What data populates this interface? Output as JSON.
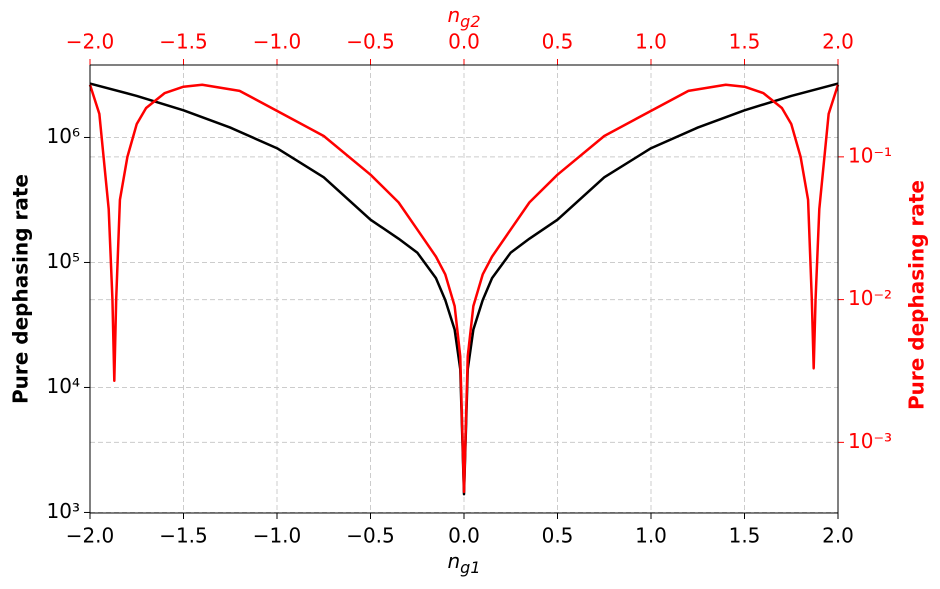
{
  "chart_data": {
    "type": "line",
    "x_label": {
      "main": "n",
      "sub": "g1"
    },
    "x2_label": {
      "main": "n",
      "sub": "g2"
    },
    "y_label": "Pure dephasing rate",
    "y2_label": "Pure dephasing rate",
    "xlim": [
      -2,
      2
    ],
    "xticks": [
      {
        "value": -2,
        "label": "−2.0"
      },
      {
        "value": -1.5,
        "label": "−1.5"
      },
      {
        "value": -1,
        "label": "−1.0"
      },
      {
        "value": -0.5,
        "label": "−0.5"
      },
      {
        "value": 0,
        "label": "0.0"
      },
      0.5,
      {
        "value": 1,
        "label": "1.0"
      },
      1.5,
      {
        "value": 2,
        "label": "2.0"
      }
    ],
    "x2lim": [
      -2,
      2
    ],
    "x2ticks": [
      {
        "value": -2,
        "label": "−2.0"
      },
      {
        "value": -1.5,
        "label": "−1.5"
      },
      {
        "value": -1,
        "label": "−1.0"
      },
      {
        "value": -0.5,
        "label": "−0.5"
      },
      {
        "value": 0,
        "label": "0.0"
      },
      0.5,
      {
        "value": 1,
        "label": "1.0"
      },
      1.5,
      {
        "value": 2,
        "label": "2.0"
      }
    ],
    "ylim": [
      990,
      3800000
    ],
    "yticks": [
      {
        "value": 1000,
        "label": "10³"
      },
      {
        "value": 10000,
        "label": "10⁴"
      },
      {
        "value": 100000,
        "label": "10⁵"
      },
      {
        "value": 1000000,
        "label": "10⁶"
      }
    ],
    "y2lim": [
      0.00032,
      0.44
    ],
    "y2ticks": [
      {
        "value": 0.001,
        "label": "10⁻³"
      },
      {
        "value": 0.01,
        "label": "10⁻²"
      },
      {
        "value": 0.1,
        "label": "10⁻¹"
      }
    ],
    "log_y": true,
    "log_y2": true,
    "grid": true,
    "y2_color": "#ff0000",
    "x2_color": "#ff0000",
    "series": [
      {
        "color": "#000000",
        "axis": "y",
        "x": [
          -2,
          -1.75,
          -1.5,
          -1.25,
          -1,
          -0.75,
          -0.5,
          -0.35,
          -0.25,
          -0.15,
          -0.1,
          -0.05,
          -0.02,
          0,
          0.02,
          0.05,
          0.1,
          0.15,
          0.25,
          0.35,
          0.5,
          0.75,
          1,
          1.25,
          1.5,
          1.75,
          2
        ],
        "values": [
          2700000,
          2150000,
          1650000,
          1200000,
          820000,
          480000,
          220000,
          155000,
          120000,
          75000,
          50000,
          29000,
          14000,
          1400,
          14000,
          29000,
          50000,
          75000,
          120000,
          155000,
          220000,
          480000,
          820000,
          1200000,
          1650000,
          2150000,
          2700000
        ]
      },
      {
        "color": "#ff0000",
        "axis": "y2",
        "x": [
          -2,
          -1.95,
          -1.9,
          -1.88,
          -1.87,
          -1.86,
          -1.84,
          -1.8,
          -1.75,
          -1.7,
          -1.6,
          -1.5,
          -1.4,
          -1.2,
          -1,
          -0.75,
          -0.5,
          -0.35,
          -0.25,
          -0.15,
          -0.1,
          -0.05,
          -0.02,
          0,
          0.02,
          0.05,
          0.1,
          0.15,
          0.25,
          0.35,
          0.5,
          0.75,
          1,
          1.2,
          1.4,
          1.5,
          1.6,
          1.7,
          1.75,
          1.8,
          1.84,
          1.86,
          1.87,
          1.88,
          1.9,
          1.95,
          2
        ],
        "values": [
          0.32,
          0.2,
          0.043,
          0.01,
          0.0027,
          0.01,
          0.05,
          0.1,
          0.17,
          0.22,
          0.28,
          0.31,
          0.32,
          0.29,
          0.21,
          0.14,
          0.075,
          0.048,
          0.031,
          0.02,
          0.015,
          0.009,
          0.004,
          0.00045,
          0.004,
          0.009,
          0.015,
          0.02,
          0.031,
          0.048,
          0.075,
          0.14,
          0.21,
          0.29,
          0.32,
          0.31,
          0.28,
          0.22,
          0.17,
          0.1,
          0.05,
          0.01,
          0.0033,
          0.01,
          0.043,
          0.2,
          0.32
        ]
      }
    ]
  }
}
